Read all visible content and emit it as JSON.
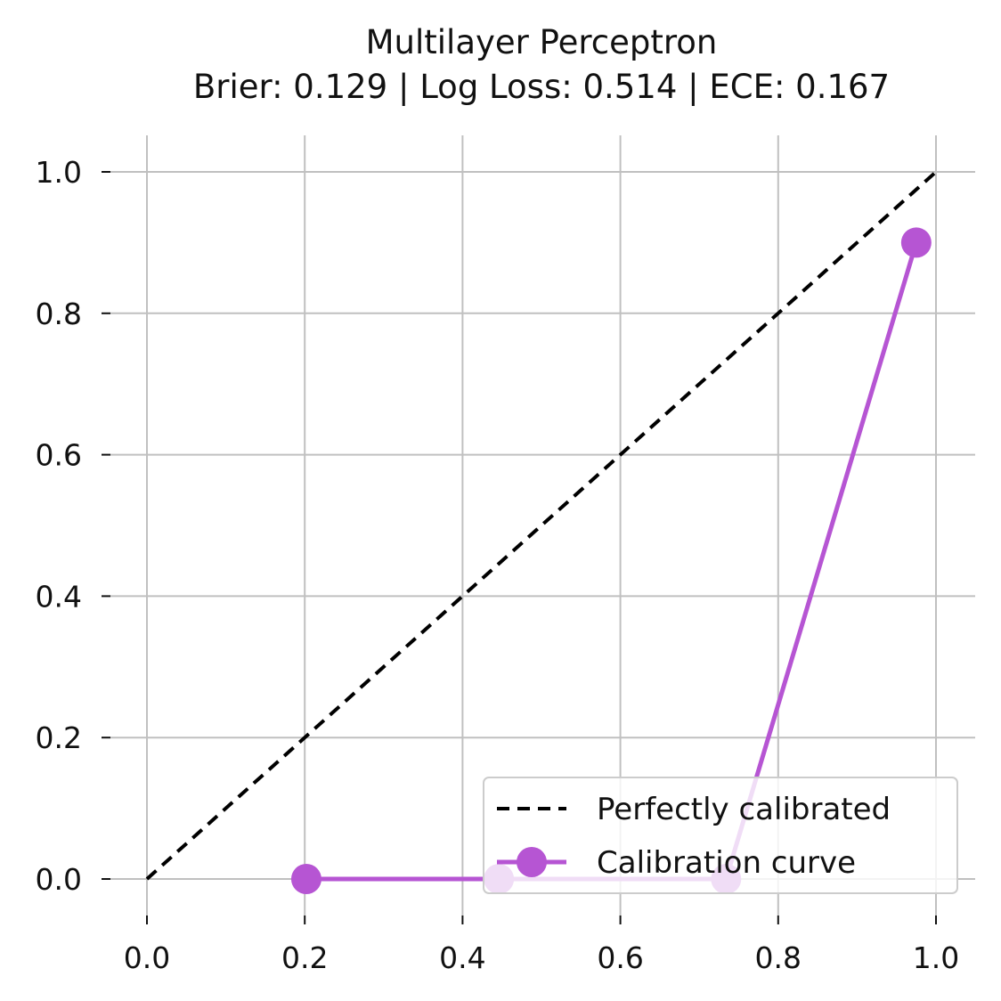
{
  "chart_data": {
    "type": "line",
    "title": "Multilayer Perceptron",
    "subtitle": "Brier: 0.129 | Log Loss: 0.514 | ECE: 0.167",
    "xlabel": "",
    "ylabel": "",
    "xlim": [
      -0.05,
      1.05
    ],
    "ylim": [
      -0.05,
      1.05
    ],
    "xticks": [
      0.0,
      0.2,
      0.4,
      0.6,
      0.8,
      1.0
    ],
    "yticks": [
      0.0,
      0.2,
      0.4,
      0.6,
      0.8,
      1.0
    ],
    "xtick_labels": [
      "0.0",
      "0.2",
      "0.4",
      "0.6",
      "0.8",
      "1.0"
    ],
    "ytick_labels": [
      "0.0",
      "0.2",
      "0.4",
      "0.6",
      "0.8",
      "1.0"
    ],
    "grid": true,
    "legend_position": "bottom-right",
    "series": [
      {
        "name": "Perfectly calibrated",
        "style": "dashed",
        "color": "#000000",
        "x": [
          0.0,
          1.0
        ],
        "y": [
          0.0,
          1.0
        ]
      },
      {
        "name": "Calibration curve",
        "style": "line-marker",
        "color": "#b655d3",
        "x": [
          0.202,
          0.446,
          0.734,
          0.975
        ],
        "y": [
          0.0,
          0.0,
          0.0,
          0.9
        ]
      }
    ]
  }
}
